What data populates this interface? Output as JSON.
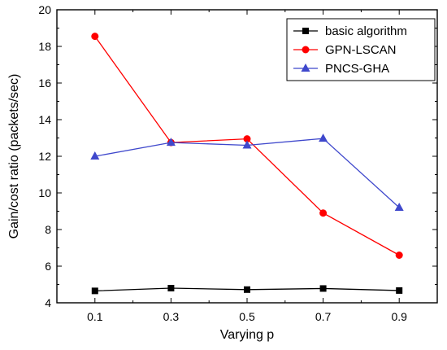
{
  "chart_data": {
    "type": "line",
    "title": "",
    "xlabel": "Varying p",
    "ylabel": "Gain/cost ratio (packets/sec)",
    "x": [
      0.1,
      0.3,
      0.5,
      0.7,
      0.9
    ],
    "x_tick_labels": [
      "0.1",
      "0.3",
      "0.5",
      "0.7",
      "0.9"
    ],
    "xlim": [
      0,
      1.0
    ],
    "ylim": [
      4,
      20
    ],
    "y_ticks": [
      4,
      6,
      8,
      10,
      12,
      14,
      16,
      18,
      20
    ],
    "y_tick_labels": [
      "4",
      "6",
      "8",
      "10",
      "12",
      "14",
      "16",
      "18",
      "20"
    ],
    "grid": false,
    "legend_position": "top-right",
    "series": [
      {
        "name": "basic algorithm",
        "marker": "square",
        "color": "#000000",
        "values": [
          4.65,
          4.8,
          4.72,
          4.78,
          4.67
        ]
      },
      {
        "name": "GPN-LSCAN",
        "marker": "circle",
        "color": "#ff0000",
        "values": [
          18.55,
          12.75,
          12.95,
          8.9,
          6.6
        ]
      },
      {
        "name": "PNCS-GHA",
        "marker": "triangle",
        "color": "#3f48cc",
        "values": [
          12.0,
          12.75,
          12.6,
          12.97,
          9.2
        ]
      }
    ]
  }
}
